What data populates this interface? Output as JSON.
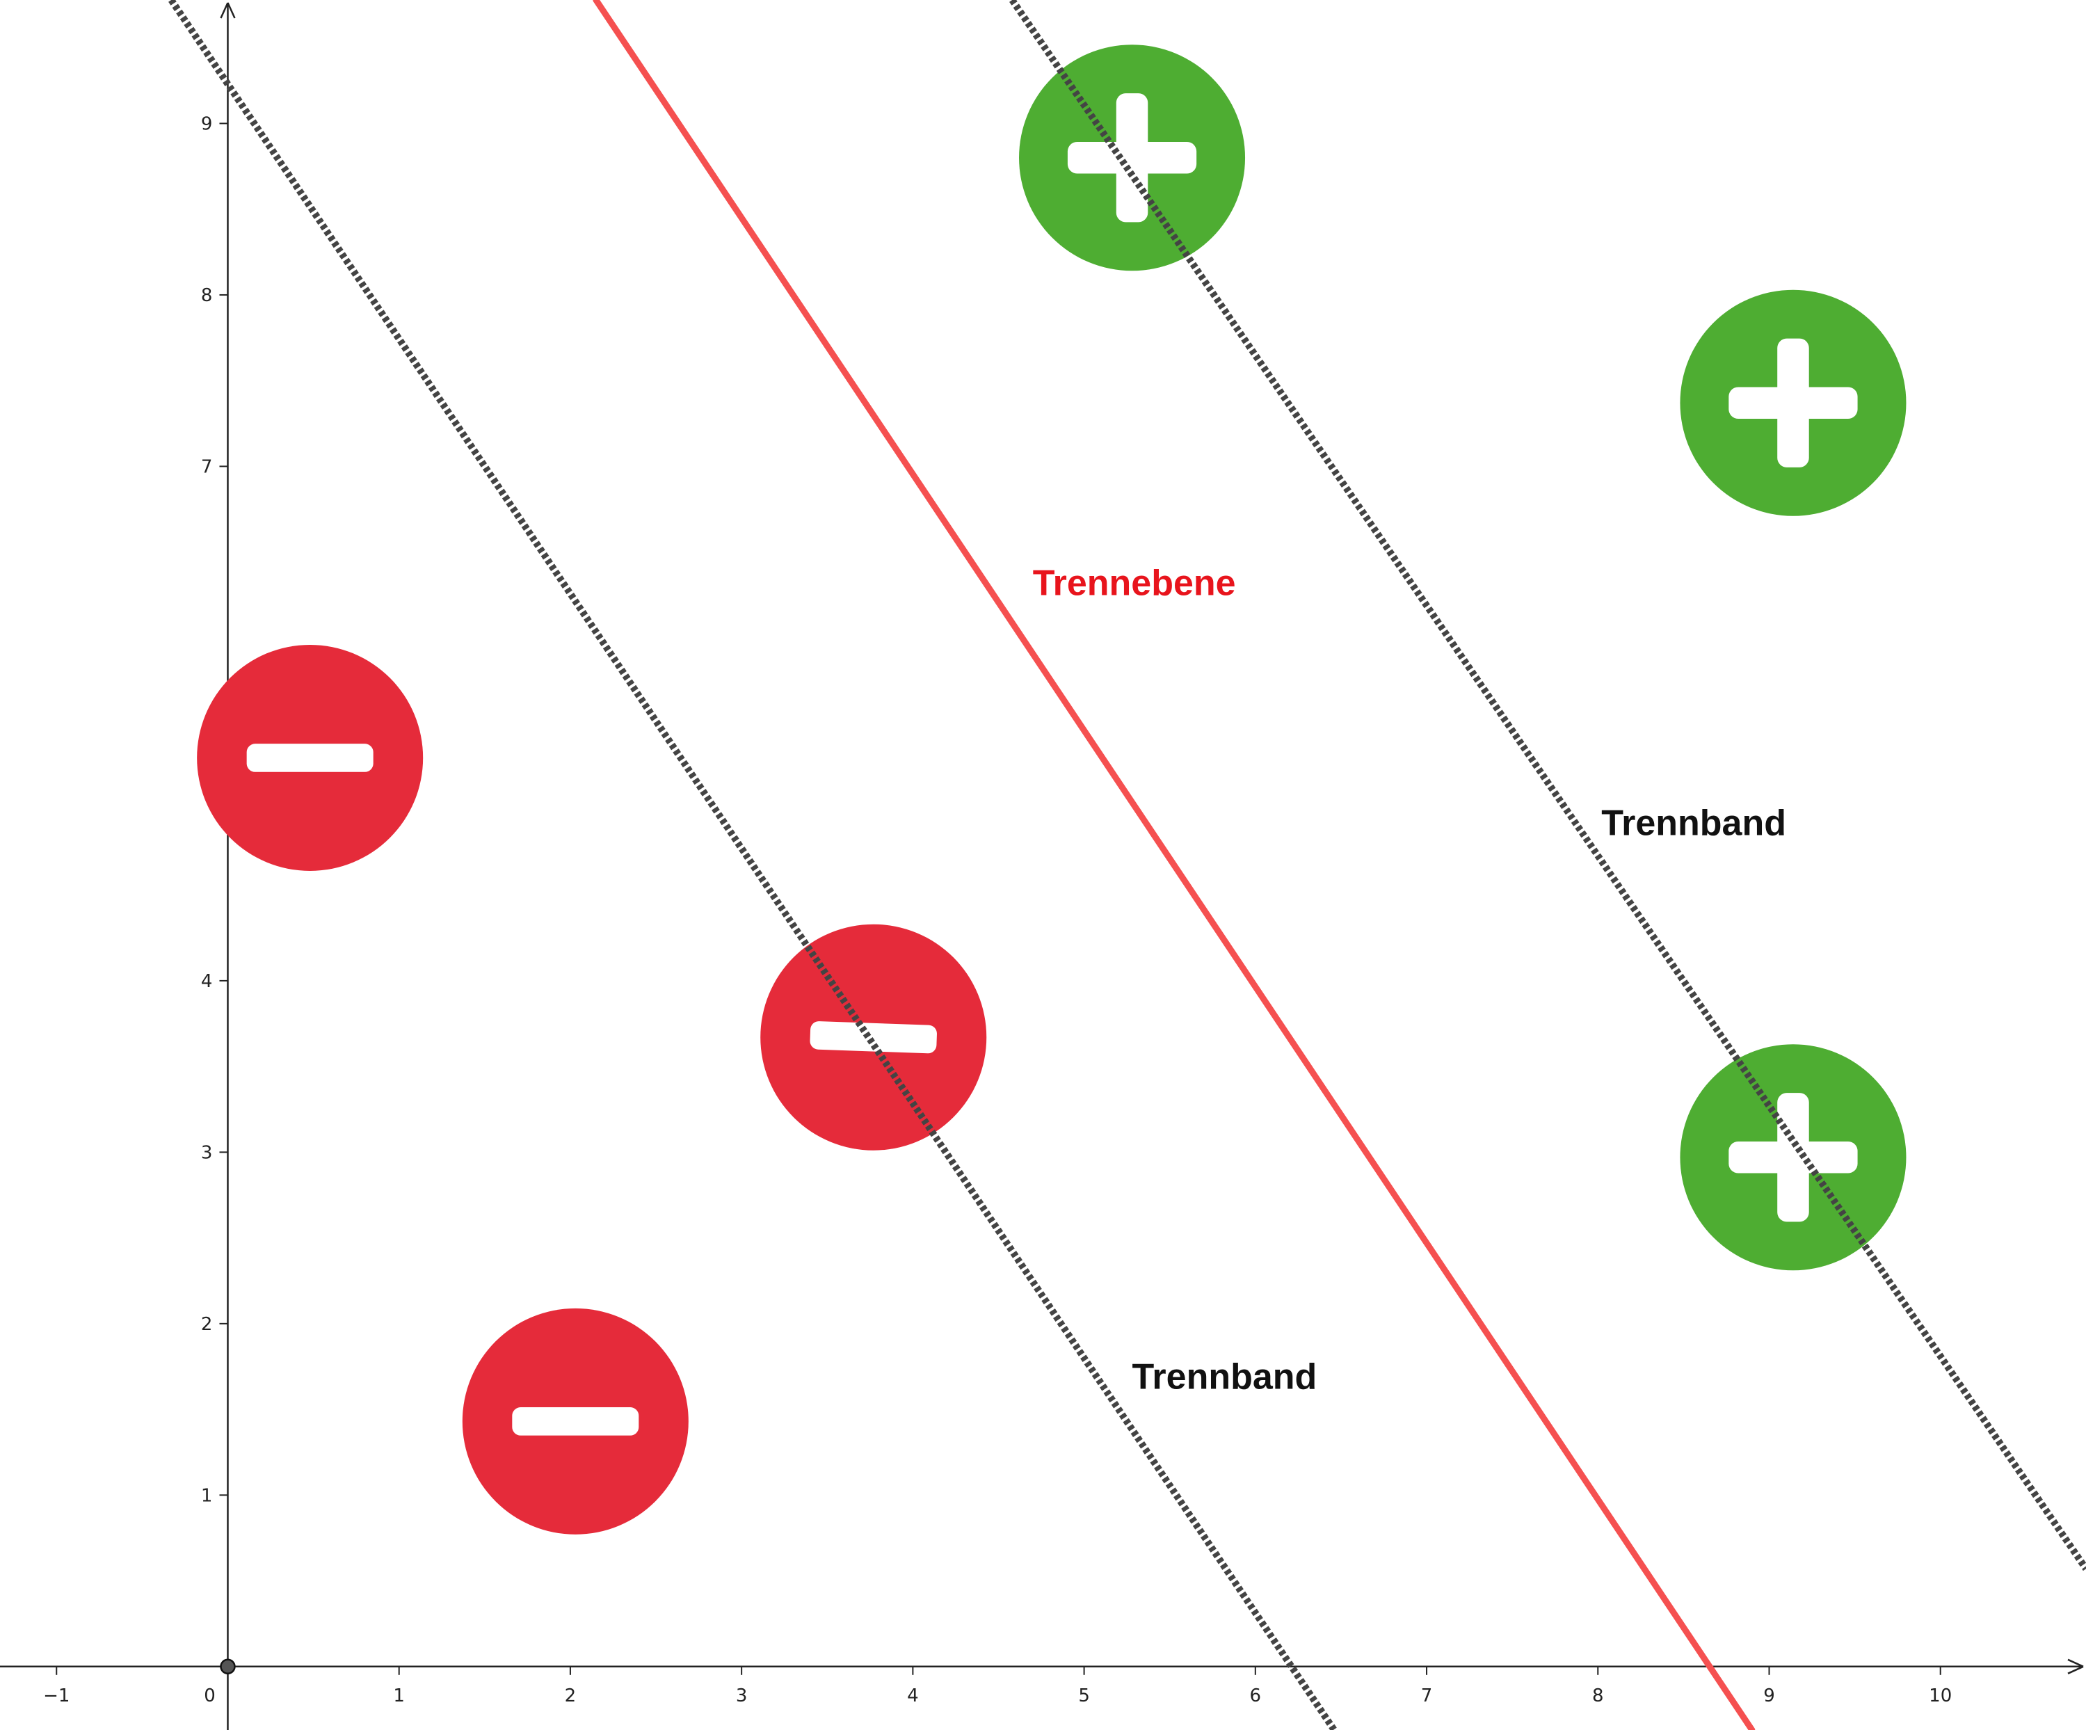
{
  "chart_data": {
    "type": "scatter",
    "xlim": [
      -1.33,
      10.85
    ],
    "ylim": [
      -0.37,
      9.72
    ],
    "x_ticks": [
      -1,
      0,
      1,
      2,
      3,
      4,
      5,
      6,
      7,
      8,
      9,
      10
    ],
    "x_tick_labels": [
      "−1",
      "0",
      "1",
      "2",
      "3",
      "4",
      "5",
      "6",
      "7",
      "8",
      "9",
      "10"
    ],
    "y_ticks": [
      1,
      2,
      3,
      4,
      7,
      8,
      9
    ],
    "y_tick_labels": [
      "1",
      "2",
      "3",
      "4",
      "7",
      "8",
      "9"
    ],
    "grid": false,
    "origin_point": [
      0,
      0
    ],
    "points": [
      {
        "class": "negative",
        "symbol": "minus",
        "x": 0.48,
        "y": 5.3
      },
      {
        "class": "negative",
        "symbol": "minus",
        "x": 3.77,
        "y": 3.67
      },
      {
        "class": "negative",
        "symbol": "minus",
        "x": 2.03,
        "y": 1.43
      },
      {
        "class": "positive",
        "symbol": "plus",
        "x": 5.28,
        "y": 8.8
      },
      {
        "class": "positive",
        "symbol": "plus",
        "x": 9.14,
        "y": 7.37
      },
      {
        "class": "positive",
        "symbol": "plus",
        "x": 9.14,
        "y": 2.97
      }
    ],
    "lines": [
      {
        "role": "hyperplane",
        "label": "Trennebene",
        "style": "solid",
        "color": "#f55050",
        "p1": [
          2.15,
          9.72
        ],
        "p2": [
          8.9,
          -0.37
        ]
      },
      {
        "role": "margin",
        "label": "Trennband",
        "style": "dotted",
        "color": "#444444",
        "p1": [
          -0.33,
          9.72
        ],
        "p2": [
          6.46,
          -0.37
        ]
      },
      {
        "role": "margin",
        "label": "Trennband",
        "style": "dotted",
        "color": "#444444",
        "p1": [
          4.58,
          9.72
        ],
        "p2": [
          10.85,
          0.57
        ]
      }
    ],
    "annotations": [
      {
        "text": "Trennebene",
        "x": 4.7,
        "y": 6.25,
        "color": "#e8141c"
      },
      {
        "text": "Trennband",
        "x": 8.02,
        "y": 4.85,
        "color": "#111111"
      },
      {
        "text": "Trennband",
        "x": 5.28,
        "y": 1.62,
        "color": "#111111"
      }
    ]
  },
  "colors": {
    "negative": "#e52b3a",
    "positive": "#4ead32",
    "symbol": "#ffffff",
    "axis": "#222222"
  }
}
